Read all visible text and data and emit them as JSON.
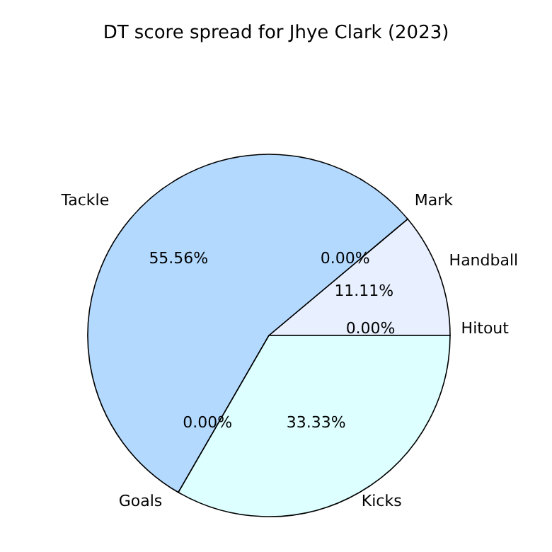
{
  "chart_data": {
    "type": "pie",
    "title": "DT score spread for Jhye Clark (2023)",
    "categories": [
      "Hitout",
      "Handball",
      "Mark",
      "Tackle",
      "Goals",
      "Kicks"
    ],
    "values": [
      0,
      11.11,
      0,
      55.56,
      0,
      33.33
    ],
    "colors": [
      "#cce6ff",
      "#e8f0ff",
      "#cce6ff",
      "#b3d9ff",
      "#cce6ff",
      "#ddffff"
    ],
    "value_labels": [
      "0.00%",
      "11.11%",
      "0.00%",
      "55.56%",
      "0.00%",
      "33.33%"
    ]
  }
}
